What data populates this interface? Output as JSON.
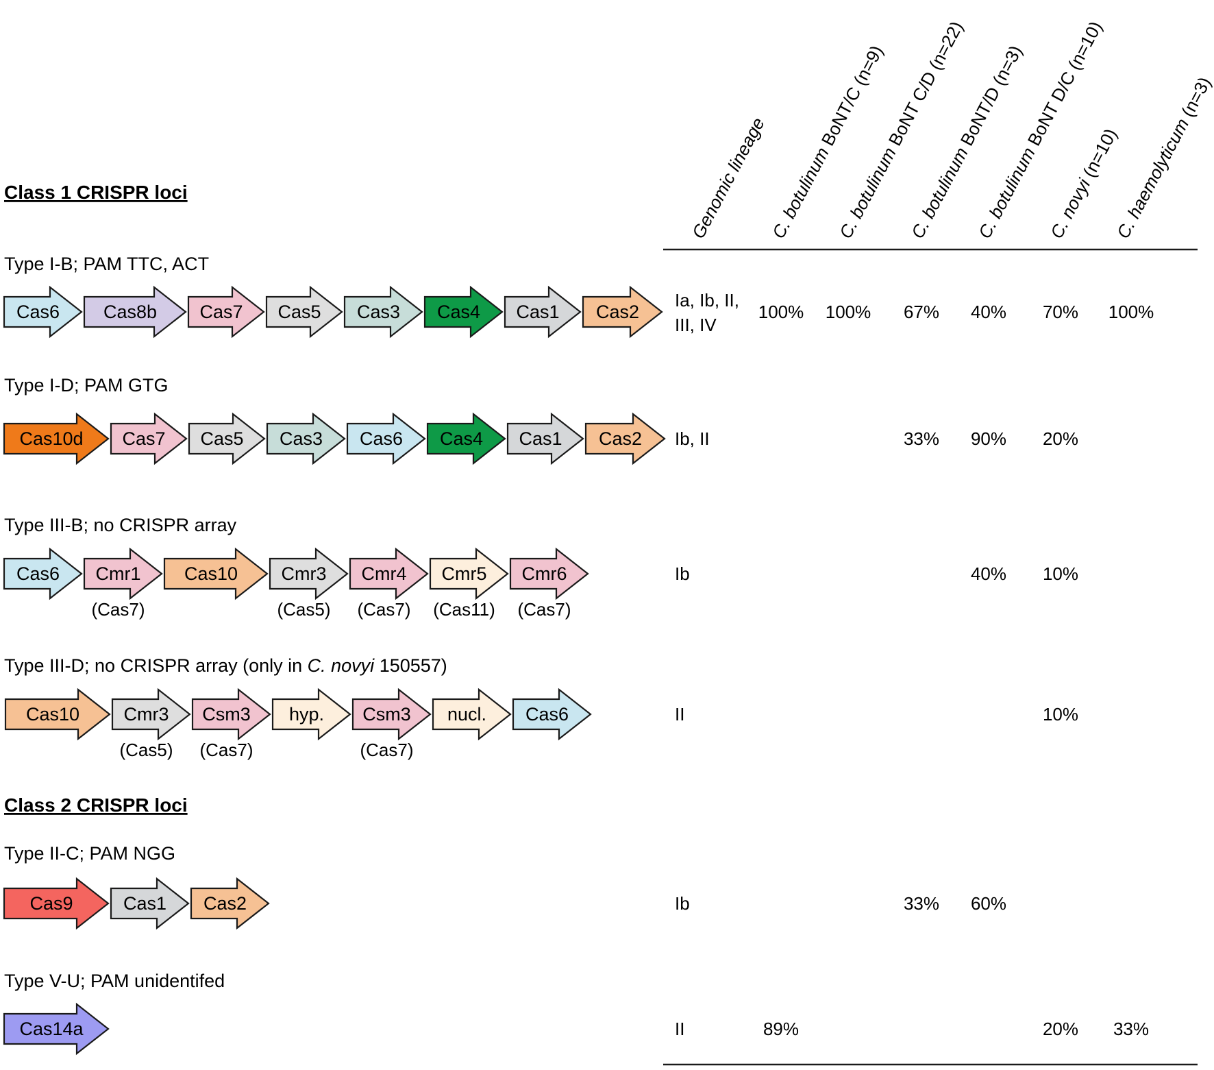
{
  "colors": {
    "Cas1": "#d5d7d9",
    "Cas2": "#f6c194",
    "Cas3": "#c7ddd9",
    "Cas4": "#0e9a47",
    "Cas5": "#dedede",
    "Cas6": "#c9e6f0",
    "Cas7": "#f1c3cf",
    "Cas8b": "#d3cbe6",
    "Cas9": "#f4655f",
    "Cas10": "#f6c194",
    "Cas10d": "#ef7a1a",
    "Cas14a": "#9d9bf2",
    "Cmr5": "#fdefdd",
    "hyp": "#fdefdd",
    "nucl": "#fdefdd",
    "stroke": "#1a1a1a"
  },
  "sections": {
    "class1": "Class 1 CRISPR loci",
    "class2": "Class 2 CRISPR loci"
  },
  "columns": [
    {
      "pre": "Genomic lineage",
      "italic": true,
      "post": ""
    },
    {
      "pre": "C. botulinum",
      "italic": true,
      "post": " BoNT/C (n=9)"
    },
    {
      "pre": "C. botulinum",
      "italic": true,
      "post": " BoNT C/D (n=22)"
    },
    {
      "pre": "C. botulinum",
      "italic": true,
      "post": " BoNT/D (n=3)"
    },
    {
      "pre": "C. botulinum",
      "italic": true,
      "post": " BoNT D/C (n=10)"
    },
    {
      "pre": "C. novyi",
      "italic": true,
      "post": " (n=10)"
    },
    {
      "pre": "C.  haemolyticum",
      "italic": true,
      "post": " (n=3)"
    }
  ],
  "rows": [
    {
      "label": "Type I-B; PAM TTC, ACT",
      "genes": [
        {
          "name": "Cas6",
          "color": "Cas6",
          "sub": ""
        },
        {
          "name": "Cas8b",
          "color": "Cas8b",
          "sub": ""
        },
        {
          "name": "Cas7",
          "color": "Cas7",
          "sub": ""
        },
        {
          "name": "Cas5",
          "color": "Cas5",
          "sub": ""
        },
        {
          "name": "Cas3",
          "color": "Cas3",
          "sub": ""
        },
        {
          "name": "Cas4",
          "color": "Cas4",
          "sub": ""
        },
        {
          "name": "Cas1",
          "color": "Cas1",
          "sub": ""
        },
        {
          "name": "Cas2",
          "color": "Cas2",
          "sub": ""
        }
      ],
      "lineage": [
        "Ia, Ib, II,",
        "III, IV"
      ],
      "values": [
        "100%",
        "100%",
        "67%",
        "40%",
        "70%",
        "100%"
      ]
    },
    {
      "label": "Type I-D; PAM GTG",
      "genes": [
        {
          "name": "Cas10d",
          "color": "Cas10d",
          "sub": ""
        },
        {
          "name": "Cas7",
          "color": "Cas7",
          "sub": ""
        },
        {
          "name": "Cas5",
          "color": "Cas5",
          "sub": ""
        },
        {
          "name": "Cas3",
          "color": "Cas3",
          "sub": ""
        },
        {
          "name": "Cas6",
          "color": "Cas6",
          "sub": ""
        },
        {
          "name": "Cas4",
          "color": "Cas4",
          "sub": ""
        },
        {
          "name": "Cas1",
          "color": "Cas1",
          "sub": ""
        },
        {
          "name": "Cas2",
          "color": "Cas2",
          "sub": ""
        }
      ],
      "lineage": [
        "Ib, II"
      ],
      "values": [
        "",
        "",
        "33%",
        "90%",
        "20%",
        ""
      ]
    },
    {
      "label": "Type III-B; no CRISPR array",
      "genes": [
        {
          "name": "Cas6",
          "color": "Cas6",
          "sub": ""
        },
        {
          "name": "Cmr1",
          "color": "Cas7",
          "sub": "(Cas7)"
        },
        {
          "name": "Cas10",
          "color": "Cas10",
          "sub": ""
        },
        {
          "name": "Cmr3",
          "color": "Cas5",
          "sub": "(Cas5)"
        },
        {
          "name": "Cmr4",
          "color": "Cas7",
          "sub": "(Cas7)"
        },
        {
          "name": "Cmr5",
          "color": "Cmr5",
          "sub": "(Cas11)"
        },
        {
          "name": "Cmr6",
          "color": "Cas7",
          "sub": "(Cas7)"
        }
      ],
      "lineage": [
        "Ib"
      ],
      "values": [
        "",
        "",
        "",
        "40%",
        "10%",
        ""
      ]
    },
    {
      "label_pre": "Type III-D; no CRISPR array (only in ",
      "label_italic": "C. novyi",
      "label_post": " 150557)",
      "genes": [
        {
          "name": "Cas10",
          "color": "Cas10",
          "sub": ""
        },
        {
          "name": "Cmr3",
          "color": "Cas5",
          "sub": "(Cas5)"
        },
        {
          "name": "Csm3",
          "color": "Cas7",
          "sub": "(Cas7)"
        },
        {
          "name": "hyp.",
          "color": "hyp",
          "sub": ""
        },
        {
          "name": "Csm3",
          "color": "Cas7",
          "sub": "(Cas7)"
        },
        {
          "name": "nucl.",
          "color": "nucl",
          "sub": ""
        },
        {
          "name": "Cas6",
          "color": "Cas6",
          "sub": ""
        }
      ],
      "lineage": [
        "II"
      ],
      "values": [
        "",
        "",
        "",
        "",
        "10%",
        ""
      ]
    },
    {
      "label": "Type II-C; PAM NGG",
      "genes": [
        {
          "name": "Cas9",
          "color": "Cas9",
          "sub": ""
        },
        {
          "name": "Cas1",
          "color": "Cas1",
          "sub": ""
        },
        {
          "name": "Cas2",
          "color": "Cas2",
          "sub": ""
        }
      ],
      "lineage": [
        "Ib"
      ],
      "values": [
        "",
        "",
        "33%",
        "60%",
        "",
        ""
      ]
    },
    {
      "label": "Type V-U; PAM unidentifed",
      "genes": [
        {
          "name": "Cas14a",
          "color": "Cas14a",
          "sub": ""
        }
      ],
      "lineage": [
        "II"
      ],
      "values": [
        "89%",
        "",
        "",
        "",
        "20%",
        "33%"
      ]
    }
  ]
}
